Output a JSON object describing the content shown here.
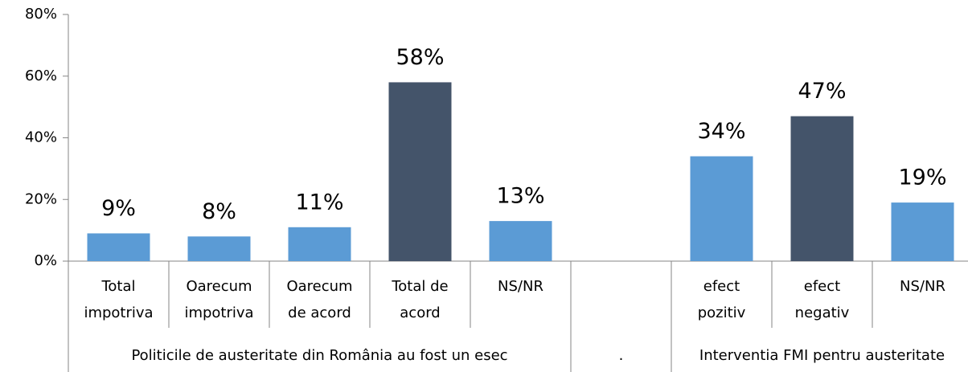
{
  "chart_data": {
    "type": "bar",
    "categories": [
      "Total\nimpotriva",
      "Oarecum\nimpotriva",
      "Oarecum\nde acord",
      "Total de\nacord",
      "NS/NR",
      null,
      "efect\npozitiv",
      "efect\nnegativ",
      "NS/NR"
    ],
    "values": [
      9,
      8,
      11,
      58,
      13,
      null,
      34,
      47,
      19
    ],
    "value_labels": [
      "9%",
      "8%",
      "11%",
      "58%",
      "13%",
      null,
      "34%",
      "47%",
      "19%"
    ],
    "colors": [
      "#5b9bd5",
      "#5b9bd5",
      "#5b9bd5",
      "#44546a",
      "#5b9bd5",
      null,
      "#5b9bd5",
      "#44546a",
      "#5b9bd5"
    ],
    "groups": [
      "Politicile de austeritate din România au fost un esec",
      ".",
      "Interventia FMI pentru austeritate"
    ],
    "ylim": [
      0,
      80
    ],
    "yticks": [
      {
        "value": 0,
        "label": "0%"
      },
      {
        "value": 20,
        "label": "20%"
      },
      {
        "value": 40,
        "label": "40%"
      },
      {
        "value": 60,
        "label": "60%"
      },
      {
        "value": 80,
        "label": "80%"
      }
    ]
  }
}
